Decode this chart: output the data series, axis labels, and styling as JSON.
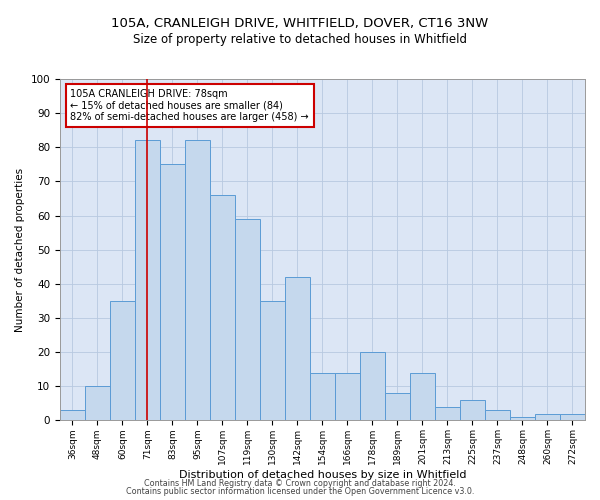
{
  "title_line1": "105A, CRANLEIGH DRIVE, WHITFIELD, DOVER, CT16 3NW",
  "title_line2": "Size of property relative to detached houses in Whitfield",
  "xlabel": "Distribution of detached houses by size in Whitfield",
  "ylabel": "Number of detached properties",
  "categories": [
    "36sqm",
    "48sqm",
    "60sqm",
    "71sqm",
    "83sqm",
    "95sqm",
    "107sqm",
    "119sqm",
    "130sqm",
    "142sqm",
    "154sqm",
    "166sqm",
    "178sqm",
    "189sqm",
    "201sqm",
    "213sqm",
    "225sqm",
    "237sqm",
    "248sqm",
    "260sqm",
    "272sqm"
  ],
  "values": [
    3,
    10,
    35,
    82,
    75,
    82,
    66,
    59,
    35,
    42,
    14,
    14,
    20,
    8,
    14,
    4,
    6,
    3,
    1,
    2,
    2
  ],
  "bar_color": "#c5d8ed",
  "bar_edge_color": "#5b9bd5",
  "grid_color": "#b8c9e0",
  "background_color": "#dce6f5",
  "property_bar_index": 3,
  "vline_color": "#cc0000",
  "annotation_text_line1": "105A CRANLEIGH DRIVE: 78sqm",
  "annotation_text_line2": "← 15% of detached houses are smaller (84)",
  "annotation_text_line3": "82% of semi-detached houses are larger (458) →",
  "annotation_box_color": "#cc0000",
  "ylim": [
    0,
    100
  ],
  "footnote1": "Contains HM Land Registry data © Crown copyright and database right 2024.",
  "footnote2": "Contains public sector information licensed under the Open Government Licence v3.0."
}
